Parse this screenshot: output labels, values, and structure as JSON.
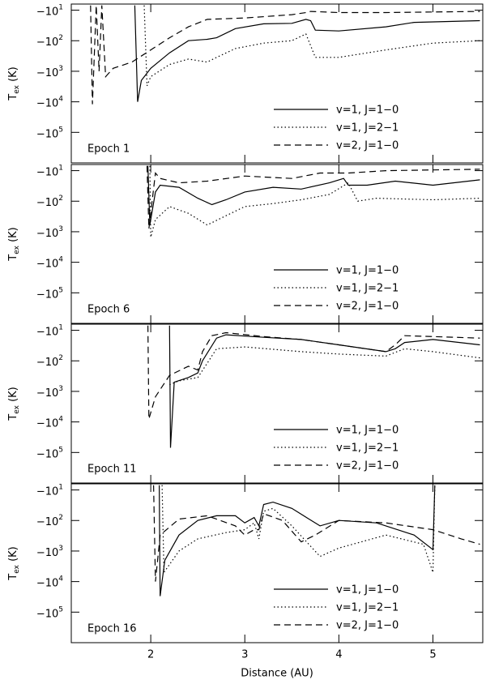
{
  "chart_data": [
    {
      "type": "line",
      "yscale": "neglog",
      "xlim": [
        1.155,
        5.53
      ],
      "ylim": [
        -1000000,
        -6.3
      ],
      "xticks": [
        2,
        3,
        4,
        5
      ],
      "yticks": [
        {
          "value": -10,
          "label": "−10",
          "exponent": "1"
        },
        {
          "value": -100,
          "label": "−10",
          "exponent": "2"
        },
        {
          "value": -1000,
          "label": "−10",
          "exponent": "3"
        },
        {
          "value": -10000,
          "label": "−10",
          "exponent": "4"
        },
        {
          "value": -100000,
          "label": "−10",
          "exponent": "5"
        }
      ],
      "ylabel": "T",
      "ylabel_sub": "ex",
      "ylabel_unit": " (K)",
      "annotation": "Epoch 1",
      "series": [
        {
          "name": "v=1, J=1−0",
          "color": "#000000",
          "linestyle": "solid",
          "x": [
            1.83,
            1.86,
            1.9,
            2.0,
            2.2,
            2.4,
            2.6,
            2.7,
            2.9,
            3.2,
            3.5,
            3.65,
            3.7,
            3.75,
            4.0,
            4.5,
            4.8,
            5.5
          ],
          "values": [
            -7,
            -10000,
            -2000,
            -800,
            -250,
            -100,
            -90,
            -80,
            -40,
            -28,
            -27,
            -20,
            -22,
            -45,
            -48,
            -35,
            -25,
            -22
          ]
        },
        {
          "name": "v=1, J=2−1",
          "color": "#000000",
          "linestyle": "dotted",
          "x": [
            1.93,
            1.96,
            2.0,
            2.2,
            2.4,
            2.6,
            2.7,
            2.9,
            3.2,
            3.5,
            3.65,
            3.75,
            4.0,
            4.5,
            5.0,
            5.5
          ],
          "values": [
            -7,
            -3000,
            -1500,
            -600,
            -400,
            -500,
            -350,
            -180,
            -120,
            -100,
            -60,
            -350,
            -350,
            -200,
            -120,
            -100
          ]
        },
        {
          "name": "v=2, J=1−0",
          "color": "#000000",
          "linestyle": "dashed",
          "x": [
            1.36,
            1.38,
            1.42,
            1.45,
            1.48,
            1.52,
            1.6,
            1.8,
            2.0,
            2.2,
            2.4,
            2.6,
            3.0,
            3.5,
            3.65,
            3.7,
            4.0,
            4.5,
            5.5
          ],
          "values": [
            -7,
            -12000,
            -7,
            -1000,
            -7,
            -1500,
            -800,
            -500,
            -200,
            -80,
            -35,
            -20,
            -18,
            -14,
            -12,
            -11,
            -12,
            -12,
            -11
          ]
        }
      ]
    },
    {
      "type": "line",
      "yscale": "neglog",
      "xlim": [
        1.155,
        5.53
      ],
      "ylim": [
        -1000000,
        -6.3
      ],
      "xticks": [
        2,
        3,
        4,
        5
      ],
      "yticks": [
        {
          "value": -10,
          "label": "−10",
          "exponent": "1"
        },
        {
          "value": -100,
          "label": "−10",
          "exponent": "2"
        },
        {
          "value": -1000,
          "label": "−10",
          "exponent": "3"
        },
        {
          "value": -10000,
          "label": "−10",
          "exponent": "4"
        },
        {
          "value": -100000,
          "label": "−10",
          "exponent": "5"
        }
      ],
      "ylabel": "T",
      "ylabel_sub": "ex",
      "ylabel_unit": " (K)",
      "annotation": "Epoch 6",
      "series": [
        {
          "name": "v=1, J=1−0",
          "color": "#000000",
          "linestyle": "solid",
          "x": [
            1.97,
            1.99,
            2.05,
            2.1,
            2.3,
            2.5,
            2.65,
            2.8,
            3.0,
            3.3,
            3.6,
            3.9,
            4.05,
            4.1,
            4.3,
            4.6,
            5.0,
            5.5
          ],
          "values": [
            -7,
            -600,
            -50,
            -30,
            -35,
            -80,
            -130,
            -90,
            -50,
            -35,
            -40,
            -25,
            -18,
            -30,
            -30,
            -22,
            -30,
            -20
          ]
        },
        {
          "name": "v=1, J=2−1",
          "color": "#000000",
          "linestyle": "dotted",
          "x": [
            1.99,
            2.0,
            2.05,
            2.2,
            2.4,
            2.6,
            2.8,
            3.0,
            3.3,
            3.6,
            3.9,
            4.1,
            4.2,
            4.4,
            5.0,
            5.5
          ],
          "values": [
            -7,
            -1500,
            -400,
            -150,
            -250,
            -600,
            -300,
            -150,
            -120,
            -90,
            -60,
            -25,
            -100,
            -80,
            -90,
            -80
          ]
        },
        {
          "name": "v=2, J=1−0",
          "color": "#000000",
          "linestyle": "dashed",
          "x": [
            1.96,
            1.98,
            2.05,
            2.1,
            2.3,
            2.6,
            3.0,
            3.5,
            3.8,
            4.1,
            4.5,
            5.5
          ],
          "values": [
            -7,
            -800,
            -12,
            -18,
            -25,
            -22,
            -15,
            -18,
            -12,
            -12,
            -10,
            -9
          ]
        }
      ]
    },
    {
      "type": "line",
      "yscale": "neglog",
      "xlim": [
        1.155,
        5.53
      ],
      "ylim": [
        -1000000,
        -6.3
      ],
      "xticks": [
        2,
        3,
        4,
        5
      ],
      "yticks": [
        {
          "value": -10,
          "label": "−10",
          "exponent": "1"
        },
        {
          "value": -100,
          "label": "−10",
          "exponent": "2"
        },
        {
          "value": -1000,
          "label": "−10",
          "exponent": "3"
        },
        {
          "value": -10000,
          "label": "−10",
          "exponent": "4"
        },
        {
          "value": -100000,
          "label": "−10",
          "exponent": "5"
        }
      ],
      "ylabel": "T",
      "ylabel_sub": "ex",
      "ylabel_unit": " (K)",
      "annotation": "Epoch 11",
      "series": [
        {
          "name": "v=1, J=1−0",
          "color": "#000000",
          "linestyle": "solid",
          "x": [
            2.2,
            2.21,
            2.25,
            2.4,
            2.5,
            2.55,
            2.7,
            2.8,
            3.2,
            3.6,
            4.0,
            4.5,
            4.6,
            4.7,
            5.0,
            5.5
          ],
          "values": [
            -7,
            -70000,
            -500,
            -350,
            -250,
            -100,
            -18,
            -14,
            -17,
            -20,
            -30,
            -50,
            -40,
            -25,
            -20,
            -30
          ]
        },
        {
          "name": "v=1, J=2−1",
          "color": "#000000",
          "linestyle": "dotted",
          "x": [
            2.2,
            2.3,
            2.5,
            2.6,
            2.7,
            3.0,
            3.6,
            4.0,
            4.5,
            4.7,
            5.0,
            5.5
          ],
          "values": [
            -600,
            -450,
            -350,
            -120,
            -40,
            -35,
            -50,
            -60,
            -70,
            -40,
            -50,
            -80
          ]
        },
        {
          "name": "v=2, J=1−0",
          "color": "#000000",
          "linestyle": "dashed",
          "x": [
            1.97,
            1.98,
            2.05,
            2.2,
            2.4,
            2.5,
            2.55,
            2.65,
            2.8,
            3.2,
            3.6,
            4.0,
            4.5,
            4.6,
            4.7,
            5.5
          ],
          "values": [
            -7,
            -8000,
            -1500,
            -300,
            -150,
            -200,
            -50,
            -15,
            -12,
            -16,
            -20,
            -30,
            -50,
            -30,
            -15,
            -18
          ]
        }
      ]
    },
    {
      "type": "line",
      "yscale": "neglog",
      "xlim": [
        1.155,
        5.53
      ],
      "ylim": [
        -1000000,
        -6.3
      ],
      "xticks": [
        2,
        3,
        4,
        5
      ],
      "xtick_labels": true,
      "xlabel": "Distance (AU)",
      "yticks": [
        {
          "value": -10,
          "label": "−10",
          "exponent": "1"
        },
        {
          "value": -100,
          "label": "−10",
          "exponent": "2"
        },
        {
          "value": -1000,
          "label": "−10",
          "exponent": "3"
        },
        {
          "value": -10000,
          "label": "−10",
          "exponent": "4"
        },
        {
          "value": -100000,
          "label": "−10",
          "exponent": "5"
        }
      ],
      "ylabel": "T",
      "ylabel_sub": "ex",
      "ylabel_unit": " (K)",
      "annotation": "Epoch 16",
      "series": [
        {
          "name": "v=1, J=1−0",
          "color": "#000000",
          "linestyle": "solid",
          "x": [
            2.09,
            2.1,
            2.15,
            2.3,
            2.5,
            2.7,
            2.9,
            3.0,
            3.1,
            3.15,
            3.2,
            3.3,
            3.5,
            3.8,
            4.0,
            4.4,
            4.8,
            5.0,
            5.02
          ],
          "values": [
            -7,
            -30000,
            -2000,
            -300,
            -100,
            -70,
            -70,
            -120,
            -80,
            -150,
            -30,
            -25,
            -40,
            -150,
            -100,
            -120,
            -300,
            -900,
            -7
          ]
        },
        {
          "name": "v=1, J=2−1",
          "color": "#000000",
          "linestyle": "dotted",
          "x": [
            2.12,
            2.14,
            2.3,
            2.5,
            2.8,
            3.0,
            3.1,
            3.15,
            3.2,
            3.3,
            3.5,
            3.8,
            4.0,
            4.5,
            4.9,
            5.0,
            5.02
          ],
          "values": [
            -7,
            -5000,
            -1000,
            -400,
            -250,
            -200,
            -120,
            -400,
            -50,
            -40,
            -150,
            -1500,
            -800,
            -300,
            -600,
            -5000,
            -7
          ]
        },
        {
          "name": "v=2, J=1−0",
          "color": "#000000",
          "linestyle": "dashed",
          "x": [
            2.03,
            2.05,
            2.1,
            2.3,
            2.6,
            2.9,
            3.0,
            3.1,
            3.15,
            3.2,
            3.4,
            3.6,
            3.75,
            4.0,
            4.5,
            5.0,
            5.3,
            5.5
          ],
          "values": [
            -7,
            -10000,
            -300,
            -90,
            -70,
            -150,
            -300,
            -200,
            -200,
            -60,
            -100,
            -500,
            -300,
            -100,
            -120,
            -200,
            -400,
            -600
          ]
        }
      ]
    }
  ]
}
